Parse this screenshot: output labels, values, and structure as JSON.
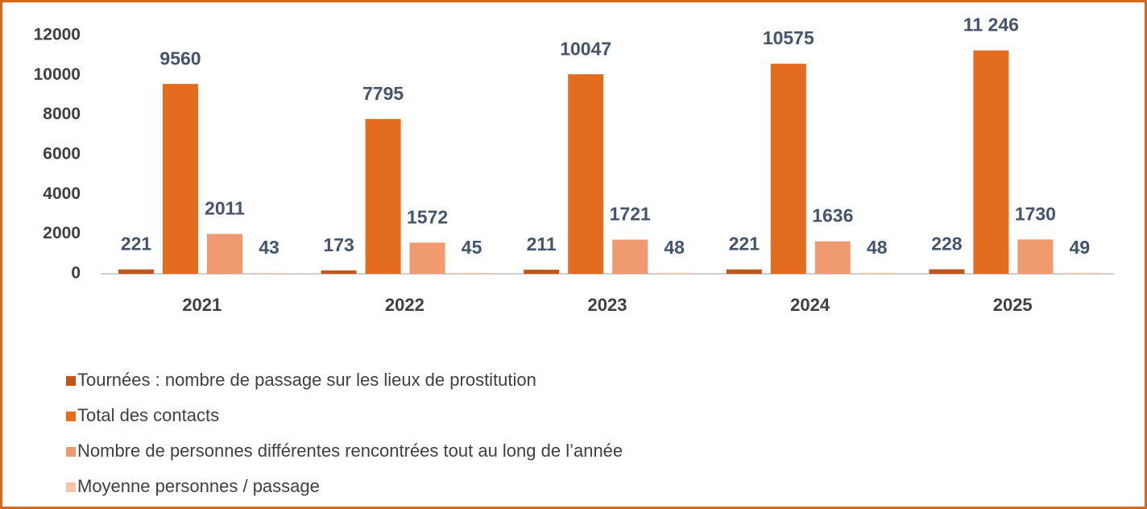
{
  "chart_data": {
    "type": "bar",
    "categories": [
      "2021",
      "2022",
      "2023",
      "2024",
      "2025"
    ],
    "series": [
      {
        "name": "Tournées : nombre de passage sur les lieux de prostitution",
        "color": "#c0561a",
        "values": [
          221,
          173,
          211,
          221,
          228
        ]
      },
      {
        "name": "Total des contacts",
        "color": "#e36c1f",
        "values": [
          9560,
          7795,
          10047,
          10575,
          11246
        ],
        "value_labels": [
          "9560",
          "7795",
          "10047",
          "10575",
          "11 246"
        ]
      },
      {
        "name": "Nombre de personnes différentes rencontrées tout au long de l’année",
        "color": "#f09a70",
        "values": [
          2011,
          1572,
          1721,
          1636,
          1730
        ]
      },
      {
        "name": "Moyenne personnes / passage",
        "color": "#f6c3a6",
        "values": [
          43,
          45,
          48,
          48,
          49
        ]
      }
    ],
    "ylim": [
      0,
      12000
    ],
    "yticks": [
      0,
      2000,
      4000,
      6000,
      8000,
      10000,
      12000
    ],
    "legend": "bottom"
  }
}
